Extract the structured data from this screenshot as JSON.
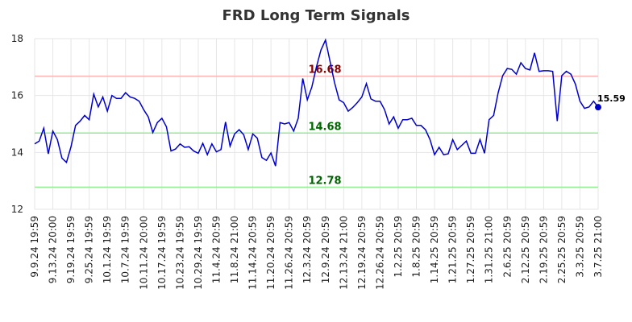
{
  "chart_data": {
    "type": "line",
    "title": "FRD Long Term Signals",
    "xlabel": "",
    "ylabel": "",
    "ylim": [
      12,
      18
    ],
    "yticks": [
      "12",
      "14",
      "16",
      "18"
    ],
    "grid": true,
    "line_color": "#0000cc",
    "x_tick_labels": [
      "9.9.24 19:59",
      "9.13.24 20:00",
      "9.19.24 19:59",
      "9.25.24 19:59",
      "10.1.24 19:59",
      "10.7.24 19:59",
      "10.11.24 20:00",
      "10.17.24 19:59",
      "10.23.24 19:59",
      "10.29.24 19:59",
      "11.4.24 20:59",
      "11.8.24 21:00",
      "11.14.24 20:59",
      "11.20.24 20:59",
      "11.26.24 20:59",
      "12.3.24 20:59",
      "12.9.24 20:59",
      "12.13.24 21:00",
      "12.19.24 20:59",
      "12.26.24 20:59",
      "1.2.25 20:59",
      "1.8.25 20:59",
      "1.14.25 20:59",
      "1.21.25 20:59",
      "1.27.25 20:59",
      "1.31.25 21:00",
      "2.6.25 20:59",
      "2.12.25 20:59",
      "2.19.25 20:59",
      "2.25.25 20:59",
      "3.3.25 20:59",
      "3.7.25 21:00"
    ],
    "reference_lines": [
      {
        "value": 16.68,
        "label": "16.68",
        "line_color": "#ffb3b3",
        "label_color": "#8b0000"
      },
      {
        "value": 14.68,
        "label": "14.68",
        "line_color": "#90ee90",
        "label_color": "#006400"
      },
      {
        "value": 12.78,
        "label": "12.78",
        "line_color": "#90ee90",
        "label_color": "#006400"
      }
    ],
    "last_value_label": "15.59",
    "series": [
      {
        "values": [
          14.3,
          14.4,
          14.85,
          13.95,
          14.75,
          14.45,
          13.8,
          13.65,
          14.2,
          14.95,
          15.1,
          15.3,
          15.15,
          16.05,
          15.6,
          15.95,
          15.45,
          16.0,
          15.9,
          15.9,
          16.1,
          15.95,
          15.9,
          15.8,
          15.5,
          15.25,
          14.7,
          15.05,
          15.2,
          14.9,
          14.05,
          14.12,
          14.3,
          14.18,
          14.2,
          14.05,
          13.97,
          14.32,
          13.92,
          14.3,
          14.02,
          14.1,
          15.07,
          14.22,
          14.65,
          14.8,
          14.62,
          14.1,
          14.65,
          14.5,
          13.82,
          13.72,
          13.98,
          13.52,
          15.05,
          15.0,
          15.05,
          14.75,
          15.2,
          16.6,
          15.85,
          16.3,
          17.0,
          17.6,
          17.95,
          17.2,
          16.45,
          15.85,
          15.75,
          15.45,
          15.58,
          15.75,
          15.95,
          16.42,
          15.88,
          15.8,
          15.8,
          15.5,
          15.0,
          15.25,
          14.85,
          15.15,
          15.15,
          15.2,
          14.95,
          14.95,
          14.8,
          14.45,
          13.92,
          14.18,
          13.92,
          13.95,
          14.45,
          14.1,
          14.25,
          14.4,
          13.97,
          13.97,
          14.45,
          13.97,
          15.15,
          15.3,
          16.1,
          16.7,
          16.95,
          16.92,
          16.75,
          17.15,
          16.95,
          16.9,
          17.5,
          16.85,
          16.87,
          16.87,
          16.85,
          15.1,
          16.7,
          16.85,
          16.75,
          16.4,
          15.8,
          15.55,
          15.6,
          15.8,
          15.59
        ]
      }
    ]
  }
}
